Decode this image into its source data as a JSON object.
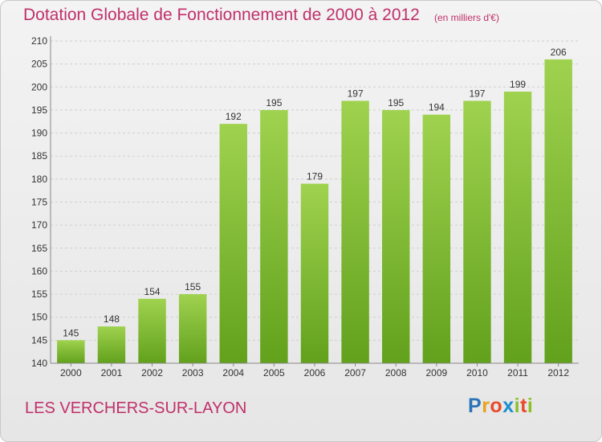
{
  "title": "Dotation Globale de Fonctionnement de 2000 à 2012",
  "subtitle": "(en milliers d'€)",
  "commune": "LES VERCHERS-SUR-LAYON",
  "logo": {
    "letters": [
      "P",
      "r",
      "o",
      "x",
      "i",
      "t",
      "i"
    ],
    "colors": [
      "#2a73b8",
      "#e8a21e",
      "#e84a2a",
      "#1b8fd0",
      "#8cbf2a",
      "#e84a2a",
      "#8cbf2a"
    ]
  },
  "colors": {
    "bar_top": "#9fd24f",
    "bar_bottom": "#62a11c",
    "title": "#c0306a"
  },
  "chart_data": {
    "type": "bar",
    "categories": [
      "2000",
      "2001",
      "2002",
      "2003",
      "2004",
      "2005",
      "2006",
      "2007",
      "2008",
      "2009",
      "2010",
      "2011",
      "2012"
    ],
    "values": [
      145,
      148,
      154,
      155,
      192,
      195,
      179,
      197,
      195,
      194,
      197,
      199,
      206
    ],
    "title": "Dotation Globale de Fonctionnement de 2000 à 2012",
    "subtitle": "(en milliers d'€)",
    "ylim": [
      140,
      210
    ],
    "yticks": [
      140,
      145,
      150,
      155,
      160,
      165,
      170,
      175,
      180,
      185,
      190,
      195,
      200,
      205,
      210
    ],
    "grid": true
  }
}
